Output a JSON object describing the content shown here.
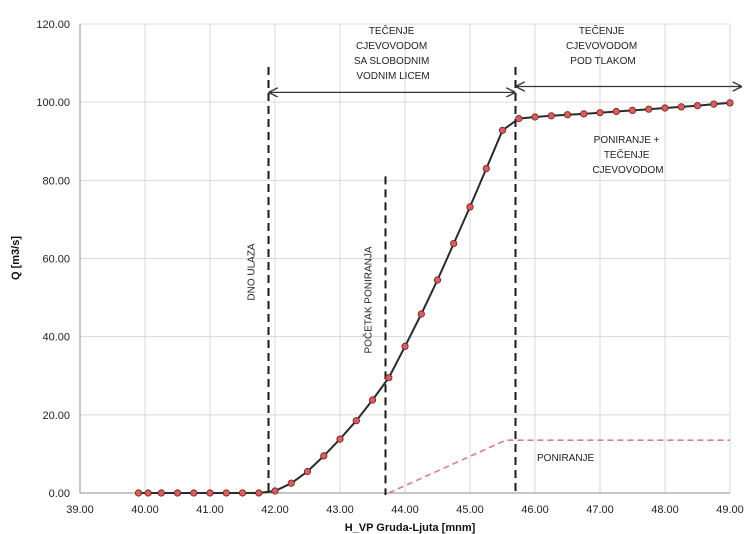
{
  "chart_data": {
    "type": "line",
    "xlabel": "H_VP Gruda-Ljuta [mnm]",
    "ylabel": "Q [m3/s]",
    "xlim": [
      39.0,
      49.0
    ],
    "ylim": [
      0.0,
      120.0
    ],
    "x_ticks": [
      "39.00",
      "40.00",
      "41.00",
      "42.00",
      "43.00",
      "44.00",
      "45.00",
      "46.00",
      "47.00",
      "48.00",
      "49.00"
    ],
    "y_ticks": [
      "0.00",
      "20.00",
      "40.00",
      "60.00",
      "80.00",
      "100.00",
      "120.00"
    ],
    "grid": true,
    "series": [
      {
        "color": "#2b2b2b",
        "marker_color": "#e05a5a",
        "style": "solid",
        "points": [
          [
            39.9,
            0.0
          ],
          [
            40.05,
            0.0
          ],
          [
            40.25,
            0.0
          ],
          [
            40.5,
            0.0
          ],
          [
            40.75,
            0.0
          ],
          [
            41.0,
            0.0
          ],
          [
            41.25,
            0.0
          ],
          [
            41.5,
            0.0
          ],
          [
            41.75,
            0.0
          ],
          [
            42.0,
            0.5
          ],
          [
            42.25,
            2.5
          ],
          [
            42.5,
            5.5
          ],
          [
            42.75,
            9.5
          ],
          [
            43.0,
            13.8
          ],
          [
            43.25,
            18.5
          ],
          [
            43.5,
            23.8
          ],
          [
            43.75,
            29.5
          ],
          [
            44.0,
            37.5
          ],
          [
            44.25,
            45.8
          ],
          [
            44.5,
            54.5
          ],
          [
            44.75,
            63.8
          ],
          [
            45.0,
            73.2
          ],
          [
            45.25,
            83.0
          ],
          [
            45.5,
            92.8
          ],
          [
            45.75,
            95.8
          ],
          [
            46.0,
            96.2
          ],
          [
            46.25,
            96.5
          ],
          [
            46.5,
            96.8
          ],
          [
            46.75,
            97.0
          ],
          [
            47.0,
            97.3
          ],
          [
            47.25,
            97.6
          ],
          [
            47.5,
            97.9
          ],
          [
            47.75,
            98.2
          ],
          [
            48.0,
            98.5
          ],
          [
            48.25,
            98.8
          ],
          [
            48.5,
            99.1
          ],
          [
            48.75,
            99.5
          ],
          [
            49.0,
            99.8
          ]
        ]
      },
      {
        "color": "#e07a8a",
        "style": "dashed",
        "points": [
          [
            43.75,
            0.0
          ],
          [
            45.55,
            13.5
          ],
          [
            49.0,
            13.5
          ]
        ]
      }
    ],
    "vlines": [
      {
        "x": 41.9,
        "y_top": 109.0,
        "label": "DNO ULAZA"
      },
      {
        "x": 43.7,
        "y_top": 81.0,
        "label": "POČETAK PONIRANJA"
      },
      {
        "x": 45.7,
        "y_top": 109.0,
        "label": ""
      }
    ],
    "arrows": [
      {
        "x1": 41.9,
        "x2": 45.7,
        "y": 102.5
      },
      {
        "x1": 45.7,
        "x2": 49.2,
        "y": 104.0
      }
    ],
    "annotations": {
      "tecenje_slobodno": [
        "TEČENJE",
        "CJEVOVODOM",
        "SA SLOBODNIM",
        "VODNIM LICEM"
      ],
      "tecenje_tlak": [
        "TEČENJE",
        "CJEVOVODOM",
        "POD TLAKOM"
      ],
      "poniranje_tecenje": [
        "PONIRANJE +",
        "TEČENJE",
        "CJEVOVODOM"
      ],
      "poniranje": [
        "PONIRANJE"
      ]
    }
  }
}
